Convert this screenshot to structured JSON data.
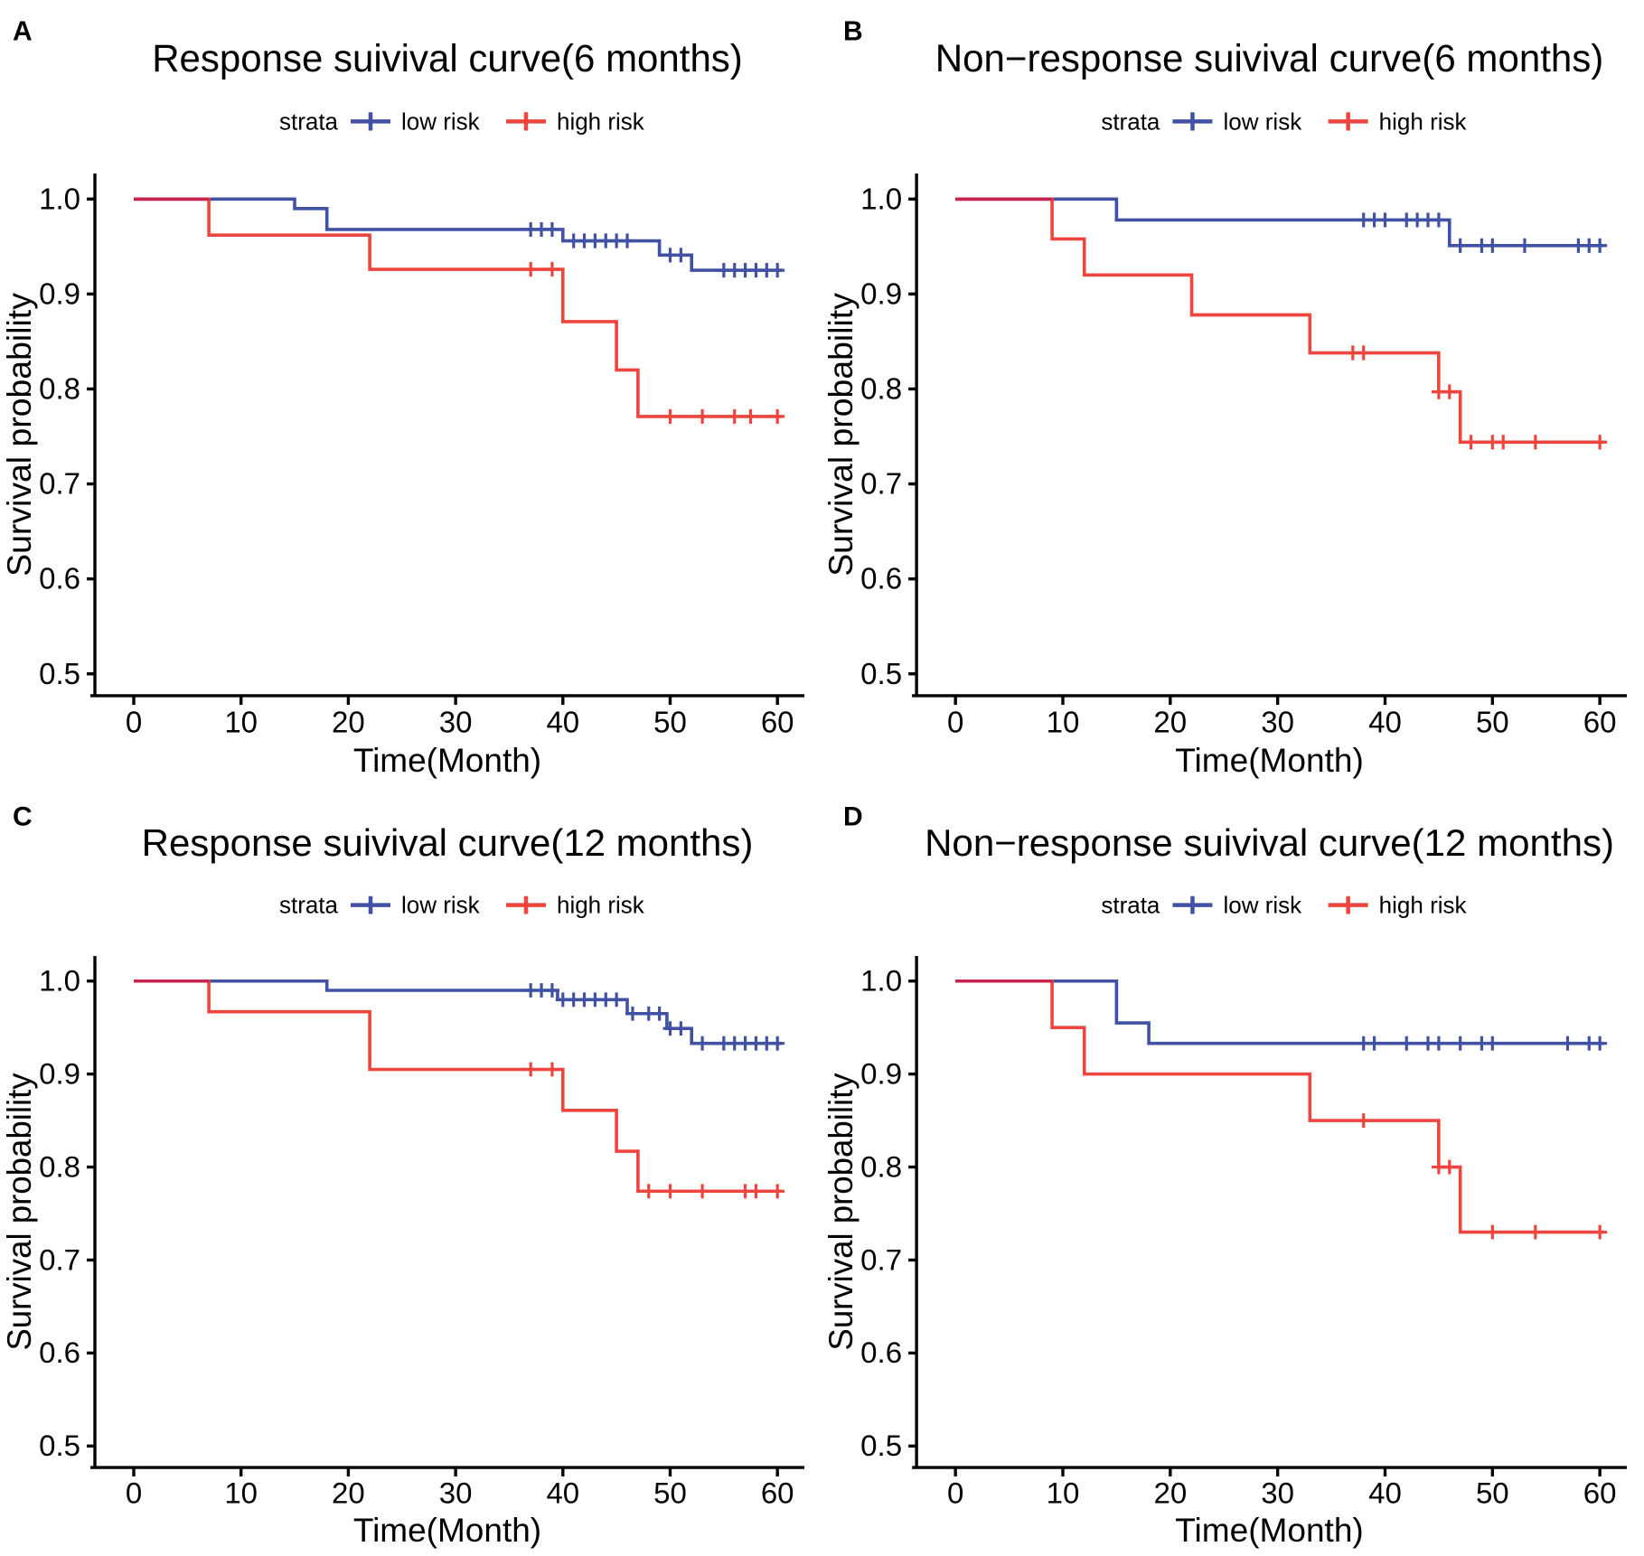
{
  "figure": {
    "background": "#ffffff",
    "colors": {
      "low_risk": "#4152a5",
      "high_risk": "#ee453e",
      "overlap": "#c8234f",
      "text": "#000000",
      "axis": "#000000"
    },
    "legend": {
      "title": "strata",
      "low_label": "low risk",
      "high_label": "high risk"
    },
    "axis": {
      "xlabel": "Time(Month)",
      "ylabel": "Survival probability",
      "x_ticks": [
        0,
        10,
        20,
        30,
        40,
        50,
        60
      ],
      "y_tick_values": [
        1.0,
        0.9,
        0.8,
        0.7,
        0.6,
        0.5
      ],
      "y_tick_labels": [
        "1.0",
        "0.9",
        "0.8",
        "0.7",
        "0.6",
        "0.5"
      ],
      "x_range": [
        0,
        60
      ],
      "y_range": [
        0.5,
        1.0
      ]
    }
  },
  "chart_data": [
    {
      "panel": "A",
      "letter": "A",
      "title": "Response suivival curve(6 months)",
      "type": "line",
      "subtype": "kaplan-meier-step",
      "x_range": [
        0,
        60
      ],
      "y_range": [
        0.5,
        1.0
      ],
      "overlap_end": 7,
      "series": [
        {
          "name": "low risk",
          "steps": [
            [
              0,
              1.0
            ],
            [
              15,
              0.99
            ],
            [
              18,
              0.968
            ],
            [
              40,
              0.956
            ],
            [
              49,
              0.941
            ],
            [
              52,
              0.925
            ]
          ],
          "end": 60.4,
          "censors": [
            [
              37,
              0.968
            ],
            [
              38,
              0.968
            ],
            [
              39,
              0.968
            ],
            [
              41,
              0.956
            ],
            [
              42,
              0.956
            ],
            [
              43,
              0.956
            ],
            [
              44,
              0.956
            ],
            [
              45,
              0.956
            ],
            [
              46,
              0.956
            ],
            [
              50,
              0.941
            ],
            [
              51,
              0.941
            ],
            [
              55,
              0.925
            ],
            [
              56,
              0.925
            ],
            [
              57,
              0.925
            ],
            [
              58,
              0.925
            ],
            [
              59,
              0.925
            ],
            [
              60,
              0.925
            ]
          ]
        },
        {
          "name": "high risk",
          "steps": [
            [
              0,
              1.0
            ],
            [
              7,
              0.962
            ],
            [
              22,
              0.926
            ],
            [
              40,
              0.871
            ],
            [
              45,
              0.82
            ],
            [
              47,
              0.771
            ]
          ],
          "end": 60.4,
          "censors": [
            [
              37,
              0.926
            ],
            [
              39,
              0.926
            ],
            [
              50,
              0.771
            ],
            [
              53,
              0.771
            ],
            [
              56,
              0.771
            ],
            [
              57.5,
              0.771
            ],
            [
              60,
              0.771
            ]
          ]
        }
      ]
    },
    {
      "panel": "B",
      "letter": "B",
      "title": "Non−response suivival curve(6 months)",
      "type": "line",
      "subtype": "kaplan-meier-step",
      "x_range": [
        0,
        60
      ],
      "y_range": [
        0.5,
        1.0
      ],
      "overlap_end": 9,
      "series": [
        {
          "name": "low risk",
          "steps": [
            [
              0,
              1.0
            ],
            [
              15,
              0.978
            ],
            [
              46,
              0.951
            ]
          ],
          "end": 60.4,
          "censors": [
            [
              38,
              0.978
            ],
            [
              39,
              0.978
            ],
            [
              40,
              0.978
            ],
            [
              42,
              0.978
            ],
            [
              43,
              0.978
            ],
            [
              44,
              0.978
            ],
            [
              45,
              0.978
            ],
            [
              47,
              0.951
            ],
            [
              49,
              0.951
            ],
            [
              50,
              0.951
            ],
            [
              53,
              0.951
            ],
            [
              58,
              0.951
            ],
            [
              59,
              0.951
            ],
            [
              60,
              0.951
            ]
          ]
        },
        {
          "name": "high risk",
          "steps": [
            [
              0,
              1.0
            ],
            [
              9,
              0.958
            ],
            [
              12,
              0.92
            ],
            [
              22,
              0.878
            ],
            [
              33,
              0.838
            ],
            [
              45,
              0.797
            ],
            [
              47,
              0.744
            ]
          ],
          "end": 60.4,
          "censors": [
            [
              37,
              0.838
            ],
            [
              38,
              0.838
            ],
            [
              45,
              0.797
            ],
            [
              46,
              0.797
            ],
            [
              48,
              0.744
            ],
            [
              50,
              0.744
            ],
            [
              51,
              0.744
            ],
            [
              54,
              0.744
            ],
            [
              60,
              0.744
            ]
          ]
        }
      ]
    },
    {
      "panel": "C",
      "letter": "C",
      "title": "Response suivival curve(12 months)",
      "type": "line",
      "subtype": "kaplan-meier-step",
      "x_range": [
        0,
        60
      ],
      "y_range": [
        0.5,
        1.0
      ],
      "overlap_end": 7,
      "series": [
        {
          "name": "low risk",
          "steps": [
            [
              0,
              1.0
            ],
            [
              18,
              0.99
            ],
            [
              39.5,
              0.98
            ],
            [
              46,
              0.965
            ],
            [
              49.7,
              0.949
            ],
            [
              52,
              0.933
            ]
          ],
          "end": 60.4,
          "censors": [
            [
              37,
              0.99
            ],
            [
              38,
              0.99
            ],
            [
              39,
              0.99
            ],
            [
              40,
              0.98
            ],
            [
              41,
              0.98
            ],
            [
              42,
              0.98
            ],
            [
              43,
              0.98
            ],
            [
              44,
              0.98
            ],
            [
              45,
              0.98
            ],
            [
              46.5,
              0.965
            ],
            [
              48,
              0.965
            ],
            [
              49,
              0.965
            ],
            [
              50,
              0.949
            ],
            [
              51,
              0.949
            ],
            [
              53,
              0.933
            ],
            [
              55,
              0.933
            ],
            [
              56,
              0.933
            ],
            [
              57,
              0.933
            ],
            [
              58,
              0.933
            ],
            [
              59,
              0.933
            ],
            [
              60,
              0.933
            ]
          ]
        },
        {
          "name": "high risk",
          "steps": [
            [
              0,
              1.0
            ],
            [
              7,
              0.967
            ],
            [
              22,
              0.905
            ],
            [
              40,
              0.861
            ],
            [
              45,
              0.817
            ],
            [
              47,
              0.774
            ]
          ],
          "end": 60.4,
          "censors": [
            [
              37,
              0.905
            ],
            [
              39,
              0.905
            ],
            [
              48,
              0.774
            ],
            [
              50,
              0.774
            ],
            [
              53,
              0.774
            ],
            [
              57,
              0.774
            ],
            [
              58,
              0.774
            ],
            [
              60,
              0.774
            ]
          ]
        }
      ]
    },
    {
      "panel": "D",
      "letter": "D",
      "title": "Non−response suivival curve(12 months)",
      "type": "line",
      "subtype": "kaplan-meier-step",
      "x_range": [
        0,
        60
      ],
      "y_range": [
        0.5,
        1.0
      ],
      "overlap_end": 9,
      "series": [
        {
          "name": "low risk",
          "steps": [
            [
              0,
              1.0
            ],
            [
              15,
              0.955
            ],
            [
              18,
              0.933
            ]
          ],
          "end": 60.4,
          "censors": [
            [
              38,
              0.933
            ],
            [
              39,
              0.933
            ],
            [
              42,
              0.933
            ],
            [
              44,
              0.933
            ],
            [
              45,
              0.933
            ],
            [
              47,
              0.933
            ],
            [
              49,
              0.933
            ],
            [
              50,
              0.933
            ],
            [
              57,
              0.933
            ],
            [
              59,
              0.933
            ],
            [
              60,
              0.933
            ]
          ]
        },
        {
          "name": "high risk",
          "steps": [
            [
              0,
              1.0
            ],
            [
              9,
              0.95
            ],
            [
              12,
              0.9
            ],
            [
              33,
              0.85
            ],
            [
              45,
              0.8
            ],
            [
              47,
              0.73
            ]
          ],
          "end": 60.4,
          "censors": [
            [
              38,
              0.85
            ],
            [
              45,
              0.8
            ],
            [
              46,
              0.8
            ],
            [
              50,
              0.73
            ],
            [
              54,
              0.73
            ],
            [
              60,
              0.73
            ]
          ]
        }
      ]
    }
  ]
}
